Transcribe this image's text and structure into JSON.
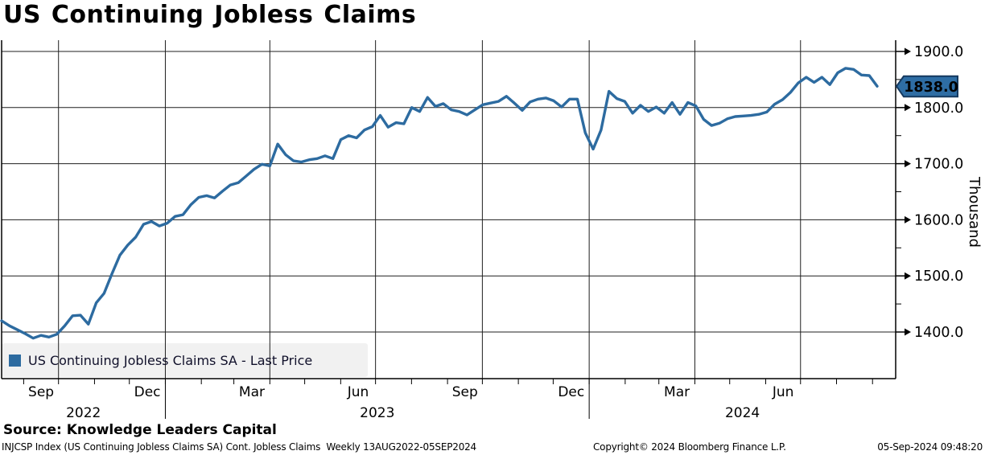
{
  "title": "US Continuing Jobless Claims",
  "legend": {
    "swatch_color": "#2d6ba0",
    "label": "US Continuing Jobless Claims SA - Last Price"
  },
  "source_line": "Source: Knowledge Leaders Capital",
  "footer": {
    "security_info": "INJCSP Index (US Continuing Jobless Claims SA) Cont. Jobless Claims  Weekly 13AUG2022-05SEP2024",
    "copyright": "Copyright© 2024 Bloomberg Finance L.P.",
    "timestamp": "05-Sep-2024 09:48:20"
  },
  "colors": {
    "grid": "#1f1f1f",
    "axis": "#000000",
    "line": "#2d6ba0",
    "tag_fill": "#2e6da4",
    "tag_border": "#15395f",
    "tag_text": "#ffffff",
    "legend_bg": "#f1f1f1"
  },
  "chart_data": {
    "type": "line",
    "title": "US Continuing Jobless Claims",
    "unit_label": "Thousand",
    "frequency": "Weekly",
    "period": "13AUG2022-05SEP2024",
    "last_price": 1838.0,
    "last_price_label": "1838.0",
    "grid": true,
    "legend_position": "bottom-left",
    "y_axis": {
      "side": "right",
      "ticks": [
        1400,
        1500,
        1600,
        1700,
        1800,
        1900
      ],
      "tick_labels": [
        "1400.0",
        "1500.0",
        "1600.0",
        "1700.0",
        "1800.0",
        "1900.0"
      ],
      "minor_step": 50,
      "ylim": [
        1317,
        1920
      ]
    },
    "x_axis": {
      "start_date": "2022-08-13",
      "end_date": "2024-09-05",
      "month_labels": [
        "Sep",
        "Dec",
        "Mar",
        "Jun",
        "Sep",
        "Dec",
        "Mar",
        "Jun"
      ],
      "year_labels": [
        "2022",
        "2023",
        "2024"
      ],
      "gridline_months": [
        "Jan",
        "Apr",
        "Jul",
        "Oct"
      ]
    },
    "series": [
      {
        "name": "US Continuing Jobless Claims SA - Last Price",
        "color": "#2d6ba0",
        "frequency": "weekly",
        "values": [
          1420,
          1411,
          1404,
          1397,
          1389,
          1394,
          1391,
          1396,
          1411,
          1429,
          1430,
          1414,
          1452,
          1469,
          1504,
          1537,
          1555,
          1569,
          1592,
          1597,
          1589,
          1594,
          1606,
          1609,
          1627,
          1640,
          1643,
          1639,
          1651,
          1662,
          1666,
          1678,
          1690,
          1699,
          1696,
          1735,
          1716,
          1705,
          1703,
          1707,
          1709,
          1714,
          1709,
          1743,
          1750,
          1746,
          1760,
          1766,
          1786,
          1765,
          1773,
          1771,
          1800,
          1793,
          1818,
          1802,
          1807,
          1796,
          1793,
          1787,
          1796,
          1805,
          1808,
          1811,
          1820,
          1808,
          1795,
          1810,
          1815,
          1817,
          1812,
          1801,
          1815,
          1815,
          1755,
          1726,
          1760,
          1829,
          1816,
          1811,
          1790,
          1804,
          1793,
          1801,
          1790,
          1809,
          1788,
          1809,
          1803,
          1779,
          1768,
          1772,
          1780,
          1784,
          1785,
          1786,
          1788,
          1792,
          1806,
          1814,
          1827,
          1844,
          1854,
          1845,
          1854,
          1841,
          1862,
          1870,
          1868,
          1858,
          1857,
          1838
        ]
      }
    ]
  }
}
